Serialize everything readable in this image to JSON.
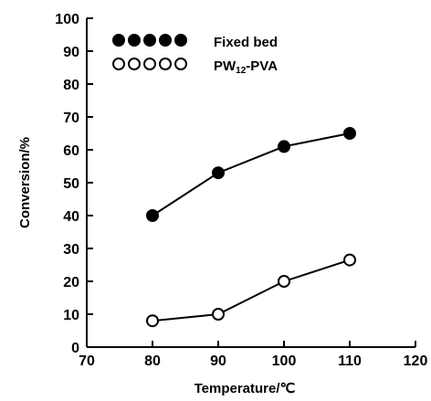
{
  "chart_data": {
    "type": "line",
    "xlabel": "Temperature/℃",
    "ylabel": "Conversion/%",
    "xlim": [
      70,
      120
    ],
    "ylim": [
      0,
      100
    ],
    "xticks": [
      70,
      80,
      90,
      100,
      110,
      120
    ],
    "yticks": [
      0,
      10,
      20,
      30,
      40,
      50,
      60,
      70,
      80,
      90,
      100
    ],
    "grid": false,
    "legend_position": "top-left",
    "x": [
      80,
      90,
      100,
      110
    ],
    "series": [
      {
        "name": "Fixed bed",
        "marker": "filled-circle",
        "color": "#000000",
        "values": [
          40,
          53,
          61,
          65
        ]
      },
      {
        "name_main": "PW",
        "name_sub": "12",
        "name_tail": "-PVA",
        "marker": "open-circle",
        "color": "#000000",
        "values": [
          8,
          10,
          20,
          26.5
        ]
      }
    ]
  }
}
